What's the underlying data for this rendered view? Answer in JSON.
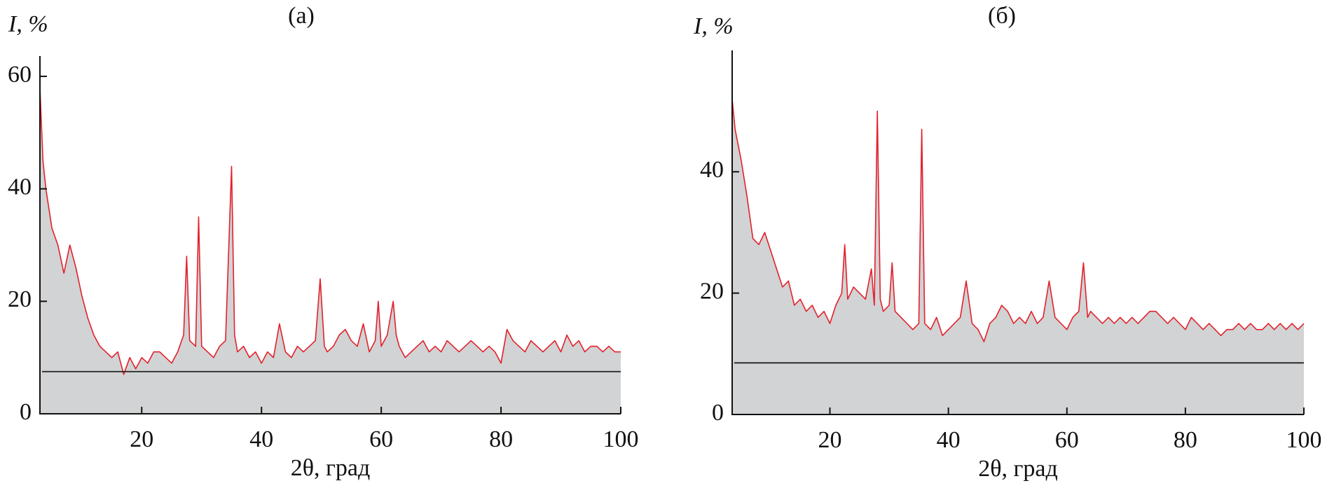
{
  "chart_data": [
    {
      "type": "area",
      "title": "(а)",
      "ylabel": "I, %",
      "xlabel": "2θ, град",
      "color": "#e3202b",
      "fill": "#d1d3d4",
      "xlim": [
        3,
        100
      ],
      "ylim": [
        0,
        62
      ],
      "xticks": [
        20,
        40,
        60,
        80,
        100
      ],
      "yticks": [
        0,
        20,
        40,
        60
      ],
      "baseline": 7.5,
      "x": [
        3,
        3.5,
        4,
        5,
        6,
        7,
        8,
        9,
        10,
        11,
        12,
        13,
        14,
        15,
        16,
        17,
        18,
        19,
        20,
        21,
        22,
        23,
        24,
        25,
        26,
        27,
        27.5,
        28,
        29,
        29.5,
        30,
        31,
        32,
        33,
        34,
        35,
        35.5,
        36,
        37,
        38,
        39,
        40,
        41,
        42,
        43,
        44,
        45,
        46,
        47,
        48,
        49,
        49.8,
        50.5,
        51,
        52,
        53,
        54,
        55,
        56,
        57,
        58,
        59,
        59.5,
        60,
        61,
        62,
        62.5,
        63,
        64,
        65,
        66,
        67,
        68,
        69,
        70,
        71,
        72,
        73,
        74,
        75,
        76,
        77,
        78,
        79,
        80,
        81,
        82,
        83,
        84,
        85,
        86,
        87,
        88,
        89,
        90,
        91,
        92,
        93,
        94,
        95,
        96,
        97,
        98,
        99,
        100
      ],
      "values": [
        58,
        45,
        40,
        33,
        30,
        25,
        30,
        26,
        21,
        17,
        14,
        12,
        11,
        10,
        11,
        7,
        10,
        8,
        10,
        9,
        11,
        11,
        10,
        9,
        11,
        14,
        28,
        13,
        12,
        35,
        12,
        11,
        10,
        12,
        13,
        44,
        14,
        11,
        12,
        10,
        11,
        9,
        11,
        10,
        16,
        11,
        10,
        12,
        11,
        12,
        13,
        24,
        12,
        11,
        12,
        14,
        15,
        13,
        12,
        16,
        11,
        13,
        20,
        12,
        14,
        20,
        14,
        12,
        10,
        11,
        12,
        13,
        11,
        12,
        11,
        13,
        12,
        11,
        12,
        13,
        12,
        11,
        12,
        11,
        9,
        15,
        13,
        12,
        11,
        13,
        12,
        11,
        12,
        13,
        11,
        14,
        12,
        13,
        11,
        12,
        12,
        11,
        12,
        11,
        11
      ]
    },
    {
      "type": "area",
      "title": "(б)",
      "ylabel": "I, %",
      "xlabel": "2θ, град",
      "color": "#e3202b",
      "fill": "#d1d3d4",
      "xlim": [
        3.5,
        100
      ],
      "ylim": [
        0,
        60
      ],
      "xticks": [
        20,
        40,
        60,
        80,
        100
      ],
      "yticks": [
        0,
        20,
        40
      ],
      "baseline": 8.5,
      "x": [
        3.5,
        4,
        5,
        6,
        7,
        8,
        9,
        10,
        11,
        12,
        13,
        14,
        15,
        16,
        17,
        18,
        19,
        20,
        21,
        22,
        22.5,
        23,
        24,
        25,
        26,
        27,
        27.5,
        28,
        28.5,
        29,
        30,
        30.5,
        31,
        32,
        33,
        34,
        35,
        35.5,
        36,
        37,
        38,
        39,
        40,
        41,
        42,
        43,
        44,
        45,
        46,
        47,
        48,
        49,
        50,
        51,
        52,
        53,
        54,
        55,
        56,
        57,
        58,
        59,
        60,
        61,
        62,
        62.8,
        63.5,
        64,
        65,
        66,
        67,
        68,
        69,
        70,
        71,
        72,
        73,
        74,
        75,
        76,
        77,
        78,
        79,
        80,
        81,
        82,
        83,
        84,
        85,
        86,
        87,
        88,
        89,
        90,
        91,
        92,
        93,
        94,
        95,
        96,
        97,
        98,
        99,
        100
      ],
      "values": [
        52,
        47,
        42,
        36,
        29,
        28,
        30,
        27,
        24,
        21,
        22,
        18,
        19,
        17,
        18,
        16,
        17,
        15,
        18,
        20,
        28,
        19,
        21,
        20,
        19,
        24,
        18,
        50,
        19,
        17,
        18,
        25,
        17,
        16,
        15,
        14,
        15,
        47,
        15,
        14,
        16,
        13,
        14,
        15,
        16,
        22,
        15,
        14,
        12,
        15,
        16,
        18,
        17,
        15,
        16,
        15,
        17,
        15,
        16,
        22,
        16,
        15,
        14,
        16,
        17,
        25,
        16,
        17,
        16,
        15,
        16,
        15,
        16,
        15,
        16,
        15,
        16,
        17,
        17,
        16,
        15,
        16,
        15,
        14,
        16,
        15,
        14,
        15,
        14,
        13,
        14,
        14,
        15,
        14,
        15,
        14,
        14,
        15,
        14,
        15,
        14,
        15,
        14,
        15
      ]
    }
  ]
}
